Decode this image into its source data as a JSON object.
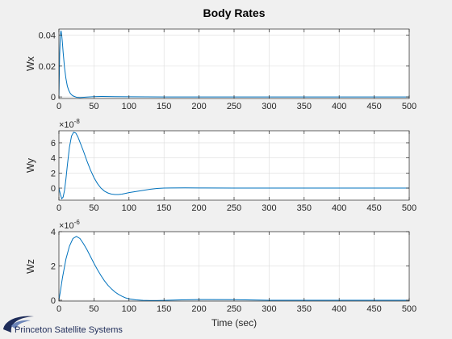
{
  "figure": {
    "title": "Body Rates",
    "logo_text": "Princeton Satellite Systems"
  },
  "chart_data": [
    {
      "type": "line",
      "ylabel": "Wx",
      "xlabel": "",
      "exponent": "",
      "xlim": [
        0,
        500
      ],
      "ylim": [
        -0.001,
        0.044
      ],
      "xticks": [
        0,
        50,
        100,
        150,
        200,
        250,
        300,
        350,
        400,
        450,
        500
      ],
      "xtick_labels": [
        "0",
        "50",
        "100",
        "150",
        "200",
        "250",
        "300",
        "350",
        "400",
        "450",
        "500"
      ],
      "yticks": [
        0,
        0.02,
        0.04
      ],
      "ytick_labels": [
        "0",
        "0.02",
        "0.04"
      ],
      "grid": true,
      "color": "#0072bd",
      "series": [
        {
          "x": [
            0,
            1,
            2,
            3,
            4,
            5,
            6,
            7,
            8,
            10,
            12,
            14,
            16,
            18,
            20,
            25,
            30,
            40,
            50,
            60,
            80,
            100,
            150,
            200,
            300,
            400,
            500
          ],
          "values": [
            0.0,
            0.026,
            0.04,
            0.043,
            0.04,
            0.035,
            0.029,
            0.024,
            0.019,
            0.012,
            0.007,
            0.0043,
            0.0025,
            0.0014,
            0.0007,
            -0.0002,
            -0.0004,
            -0.0001,
            0.0002,
            0.0003,
            0.0002,
            0.0001,
            0.0,
            0.0,
            0.0,
            0.0,
            0.0
          ]
        }
      ]
    },
    {
      "type": "line",
      "ylabel": "Wy",
      "xlabel": "",
      "exponent": "-8",
      "xlim": [
        0,
        500
      ],
      "ylim": [
        -1.6,
        7.6
      ],
      "xticks": [
        0,
        50,
        100,
        150,
        200,
        250,
        300,
        350,
        400,
        450,
        500
      ],
      "xtick_labels": [
        "0",
        "50",
        "100",
        "150",
        "200",
        "250",
        "300",
        "350",
        "400",
        "450",
        "500"
      ],
      "yticks": [
        0,
        2,
        4,
        6
      ],
      "ytick_labels": [
        "0",
        "2",
        "4",
        "6"
      ],
      "grid": true,
      "color": "#0072bd",
      "series": [
        {
          "x": [
            0,
            2,
            4,
            6,
            8,
            10,
            12,
            15,
            18,
            21,
            24,
            27,
            30,
            35,
            40,
            45,
            50,
            55,
            60,
            65,
            70,
            75,
            80,
            85,
            90,
            95,
            100,
            110,
            120,
            130,
            140,
            150,
            160,
            180,
            200,
            250,
            300,
            350,
            400,
            450,
            500
          ],
          "values": [
            0.0,
            -0.8,
            -1.4,
            -1.2,
            -0.3,
            1.2,
            3.0,
            5.4,
            6.9,
            7.4,
            7.3,
            6.8,
            6.1,
            4.9,
            3.6,
            2.4,
            1.4,
            0.6,
            0.0,
            -0.4,
            -0.65,
            -0.8,
            -0.85,
            -0.85,
            -0.8,
            -0.7,
            -0.6,
            -0.45,
            -0.3,
            -0.15,
            -0.05,
            0.0,
            0.02,
            0.03,
            0.02,
            0.0,
            0.0,
            0.0,
            0.0,
            0.0,
            0.0
          ]
        }
      ]
    },
    {
      "type": "line",
      "ylabel": "Wz",
      "xlabel": "Time (sec)",
      "exponent": "-6",
      "xlim": [
        0,
        500
      ],
      "ylim": [
        -0.05,
        4.0
      ],
      "xticks": [
        0,
        50,
        100,
        150,
        200,
        250,
        300,
        350,
        400,
        450,
        500
      ],
      "xtick_labels": [
        "0",
        "50",
        "100",
        "150",
        "200",
        "250",
        "300",
        "350",
        "400",
        "450",
        "500"
      ],
      "yticks": [
        0,
        2,
        4
      ],
      "ytick_labels": [
        "0",
        "2",
        "4"
      ],
      "grid": true,
      "color": "#0072bd",
      "series": [
        {
          "x": [
            0,
            2,
            5,
            10,
            15,
            20,
            25,
            30,
            35,
            40,
            45,
            50,
            55,
            60,
            65,
            70,
            75,
            80,
            85,
            90,
            95,
            100,
            110,
            120,
            130,
            140,
            150,
            175,
            200,
            250,
            300,
            350,
            400,
            450,
            500
          ],
          "values": [
            0.0,
            0.5,
            1.3,
            2.4,
            3.15,
            3.6,
            3.72,
            3.6,
            3.3,
            2.95,
            2.55,
            2.15,
            1.78,
            1.44,
            1.13,
            0.87,
            0.66,
            0.48,
            0.34,
            0.23,
            0.14,
            0.08,
            0.02,
            -0.01,
            -0.02,
            -0.02,
            -0.01,
            0.02,
            0.04,
            0.03,
            0.0,
            0.0,
            0.0,
            0.0,
            0.0
          ]
        }
      ]
    }
  ]
}
